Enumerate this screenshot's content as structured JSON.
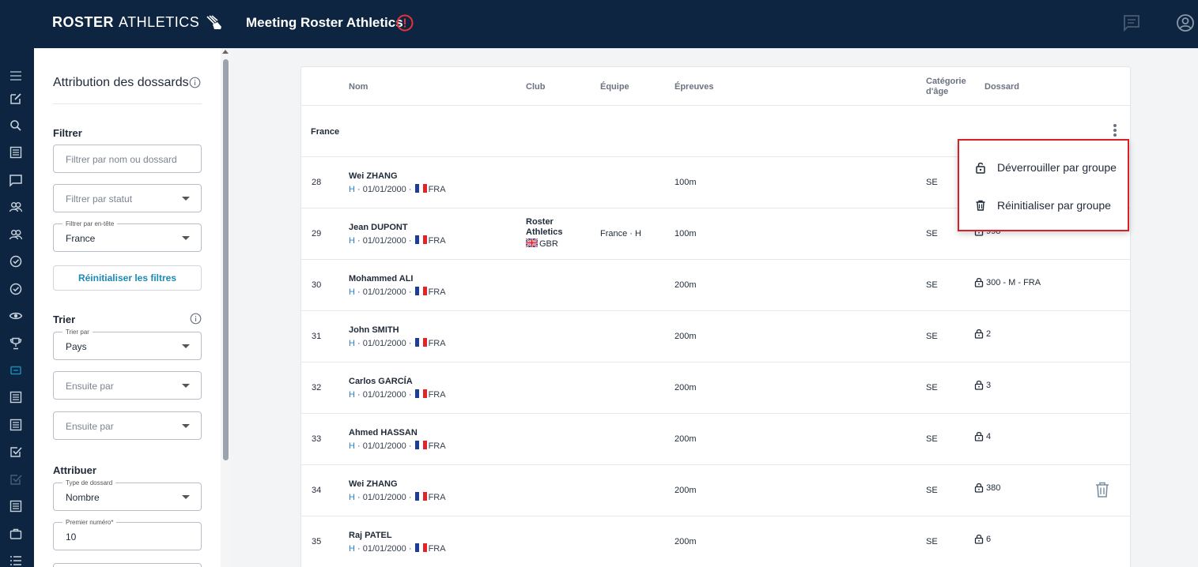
{
  "header": {
    "logo_bold": "ROSTER",
    "logo_light": "ATHLETICS",
    "meeting_title": "Meeting Roster Athletics"
  },
  "sidebar_icons": [
    "menu-icon",
    "edit-icon",
    "search-icon",
    "list-icon",
    "chat-icon",
    "people-icon",
    "people-icon",
    "check-circle-icon",
    "check-circle-icon",
    "eye-icon",
    "trophy-icon",
    "bib-icon",
    "list-icon",
    "list-icon",
    "checkbox-icon",
    "double-check-icon",
    "list-icon",
    "briefcase-icon",
    "list-bullets-icon"
  ],
  "panel": {
    "title": "Attribution des dossards",
    "filter": {
      "label": "Filtrer",
      "search_placeholder": "Filtrer par nom ou dossard",
      "status_placeholder": "Filtrer par statut",
      "header_label": "Filtrer par en-tête",
      "header_value": "France",
      "reset_label": "Réinitialiser les filtres"
    },
    "sort": {
      "label": "Trier",
      "by_label": "Trier par",
      "by_value": "Pays",
      "then1_placeholder": "Ensuite par",
      "then2_placeholder": "Ensuite par"
    },
    "assign": {
      "label": "Attribuer",
      "type_label": "Type de dossard",
      "type_value": "Nombre",
      "first_label": "Premier numéro*",
      "first_value": "10"
    }
  },
  "table": {
    "columns": {
      "name": "Nom",
      "club": "Club",
      "team": "Équipe",
      "events": "Épreuves",
      "category_line1": "Catégorie",
      "category_line2": "d'âge",
      "bib": "Dossard"
    },
    "group": "France",
    "rows": [
      {
        "num": "28",
        "name": "Wei ZHANG",
        "gender": "H",
        "dob": "01/01/2000",
        "country": "FRA",
        "club": "",
        "club_line2": "",
        "club_country": "",
        "team": "",
        "event": "100m",
        "category": "SE",
        "bib": ""
      },
      {
        "num": "29",
        "name": "Jean DUPONT",
        "gender": "H",
        "dob": "01/01/2000",
        "country": "FRA",
        "club": "Roster",
        "club_line2": "Athletics",
        "club_country": "GBR",
        "team": "France · H",
        "event": "100m",
        "category": "SE",
        "bib": "998"
      },
      {
        "num": "30",
        "name": "Mohammed ALI",
        "gender": "H",
        "dob": "01/01/2000",
        "country": "FRA",
        "club": "",
        "club_line2": "",
        "club_country": "",
        "team": "",
        "event": "200m",
        "category": "SE",
        "bib": "300 - M - FRA"
      },
      {
        "num": "31",
        "name": "John SMITH",
        "gender": "H",
        "dob": "01/01/2000",
        "country": "FRA",
        "club": "",
        "club_line2": "",
        "club_country": "",
        "team": "",
        "event": "200m",
        "category": "SE",
        "bib": "2"
      },
      {
        "num": "32",
        "name": "Carlos GARCÍA",
        "gender": "H",
        "dob": "01/01/2000",
        "country": "FRA",
        "club": "",
        "club_line2": "",
        "club_country": "",
        "team": "",
        "event": "200m",
        "category": "SE",
        "bib": "3"
      },
      {
        "num": "33",
        "name": "Ahmed HASSAN",
        "gender": "H",
        "dob": "01/01/2000",
        "country": "FRA",
        "club": "",
        "club_line2": "",
        "club_country": "",
        "team": "",
        "event": "200m",
        "category": "SE",
        "bib": "4"
      },
      {
        "num": "34",
        "name": "Wei ZHANG",
        "gender": "H",
        "dob": "01/01/2000",
        "country": "FRA",
        "club": "",
        "club_line2": "",
        "club_country": "",
        "team": "",
        "event": "200m",
        "category": "SE",
        "bib": "380"
      },
      {
        "num": "35",
        "name": "Raj PATEL",
        "gender": "H",
        "dob": "01/01/2000",
        "country": "FRA",
        "club": "",
        "club_line2": "",
        "club_country": "",
        "team": "",
        "event": "200m",
        "category": "SE",
        "bib": "6"
      }
    ]
  },
  "context_menu": {
    "unlock_label": "Déverrouiller par groupe",
    "reset_label": "Réinitialiser par groupe"
  },
  "colors": {
    "navy": "#0d2540",
    "accent": "#1a8bb7",
    "alert": "#e5323b",
    "menu_border": "#d61f26"
  }
}
